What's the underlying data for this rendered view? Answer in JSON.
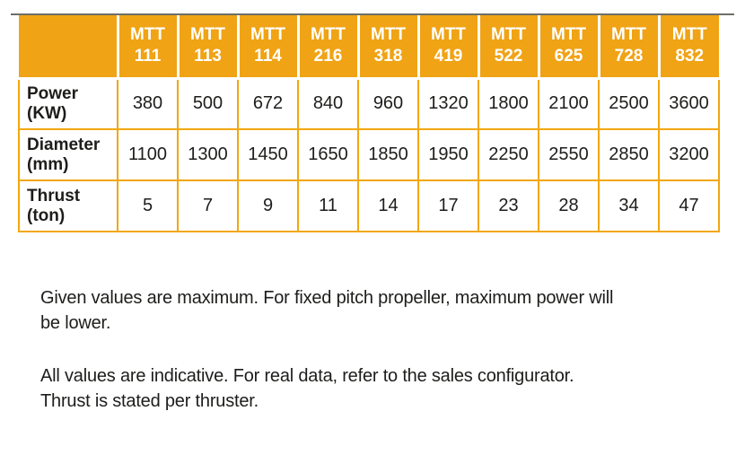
{
  "colors": {
    "header_bg": "#F0A314",
    "grid": "#F2A70E",
    "header_text": "#FFFFFF",
    "body_text": "#1D1D1B",
    "top_rule": "#4A4A42"
  },
  "table": {
    "columns": [
      {
        "line1": "MTT",
        "line2": "111"
      },
      {
        "line1": "MTT",
        "line2": "113"
      },
      {
        "line1": "MTT",
        "line2": "114"
      },
      {
        "line1": "MTT",
        "line2": "216"
      },
      {
        "line1": "MTT",
        "line2": "318"
      },
      {
        "line1": "MTT",
        "line2": "419"
      },
      {
        "line1": "MTT",
        "line2": "522"
      },
      {
        "line1": "MTT",
        "line2": "625"
      },
      {
        "line1": "MTT",
        "line2": "728"
      },
      {
        "line1": "MTT",
        "line2": "832"
      }
    ],
    "rows": [
      {
        "label_line1": "Power",
        "label_line2": "(KW)",
        "values": [
          "380",
          "500",
          "672",
          "840",
          "960",
          "1320",
          "1800",
          "2100",
          "2500",
          "3600"
        ]
      },
      {
        "label_line1": "Diameter",
        "label_line2": "(mm)",
        "values": [
          "1100",
          "1300",
          "1450",
          "1650",
          "1850",
          "1950",
          "2250",
          "2550",
          "2850",
          "3200"
        ]
      },
      {
        "label_line1": "Thrust",
        "label_line2": "(ton)",
        "values": [
          "5",
          "7",
          "9",
          "11",
          "14",
          "17",
          "23",
          "28",
          "34",
          "47"
        ]
      }
    ]
  },
  "notes": [
    {
      "lines": [
        "Given values are maximum. For fixed pitch propeller, maximum power will",
        "be lower."
      ]
    },
    {
      "lines": [
        "All values are indicative. For real data, refer to the sales configurator.",
        "Thrust is stated per thruster."
      ]
    }
  ]
}
